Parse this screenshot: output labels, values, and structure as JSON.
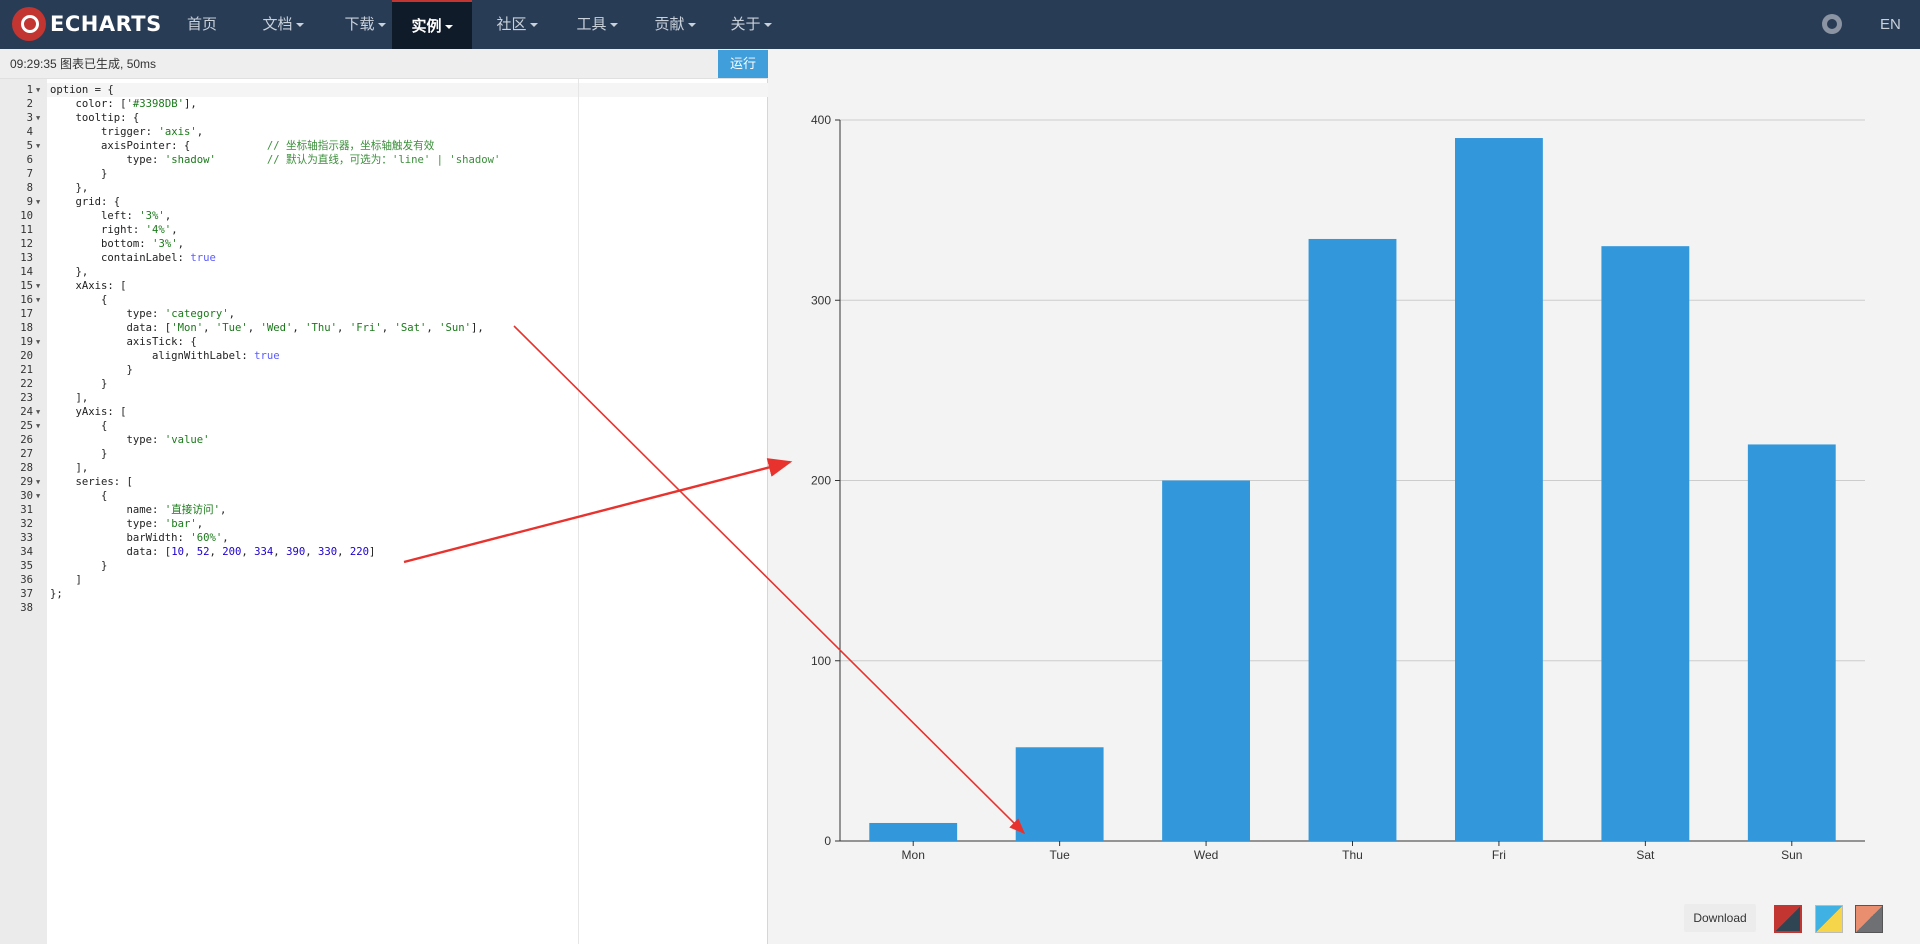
{
  "navbar": {
    "logo_text": "ECHARTS",
    "items": [
      {
        "label": "首页",
        "caret": false,
        "active": false
      },
      {
        "label": "文档",
        "caret": true,
        "active": false
      },
      {
        "label": "下载",
        "caret": true,
        "active": false
      },
      {
        "label": "实例",
        "caret": true,
        "active": true
      },
      {
        "label": "社区",
        "caret": true,
        "active": false
      },
      {
        "label": "工具",
        "caret": true,
        "active": false
      },
      {
        "label": "贡献",
        "caret": true,
        "active": false
      },
      {
        "label": "关于",
        "caret": true,
        "active": false
      }
    ],
    "github_icon": "github-icon",
    "lang": "EN"
  },
  "editor": {
    "status": "09:29:35   图表已生成, 50ms",
    "run_label": "运行",
    "code_lines": [
      "option = {",
      "    color: ['#3398DB'],",
      "    tooltip: {",
      "        trigger: 'axis',",
      "        axisPointer: {            // 坐标轴指示器，坐标轴触发有效",
      "            type: 'shadow'        // 默认为直线，可选为：'line' | 'shadow'",
      "        }",
      "    },",
      "    grid: {",
      "        left: '3%',",
      "        right: '4%',",
      "        bottom: '3%',",
      "        containLabel: true",
      "    },",
      "    xAxis: [",
      "        {",
      "            type: 'category',",
      "            data: ['Mon', 'Tue', 'Wed', 'Thu', 'Fri', 'Sat', 'Sun'],",
      "            axisTick: {",
      "                alignWithLabel: true",
      "            }",
      "        }",
      "    ],",
      "    yAxis: [",
      "        {",
      "            type: 'value'",
      "        }",
      "    ],",
      "    series: [",
      "        {",
      "            name: '直接访问',",
      "            type: 'bar',",
      "            barWidth: '60%',",
      "            data: [10, 52, 200, 334, 390, 330, 220]",
      "        }",
      "    ]",
      "};",
      ""
    ],
    "fold_lines": [
      1,
      3,
      5,
      9,
      15,
      16,
      19,
      24,
      25,
      29,
      30
    ]
  },
  "chart_data": {
    "type": "bar",
    "categories": [
      "Mon",
      "Tue",
      "Wed",
      "Thu",
      "Fri",
      "Sat",
      "Sun"
    ],
    "values": [
      10,
      52,
      200,
      334,
      390,
      330,
      220
    ],
    "ylim": [
      0,
      400
    ],
    "yticks": [
      0,
      100,
      200,
      300,
      400
    ],
    "color": "#3398DB",
    "grid": true,
    "title": "",
    "xlabel": "",
    "ylabel": ""
  },
  "toolbar": {
    "download_label": "Download",
    "themes": [
      "theme-default",
      "theme-light",
      "theme-vintage"
    ]
  },
  "annotations": {
    "arrow_color": "#e8322e"
  }
}
